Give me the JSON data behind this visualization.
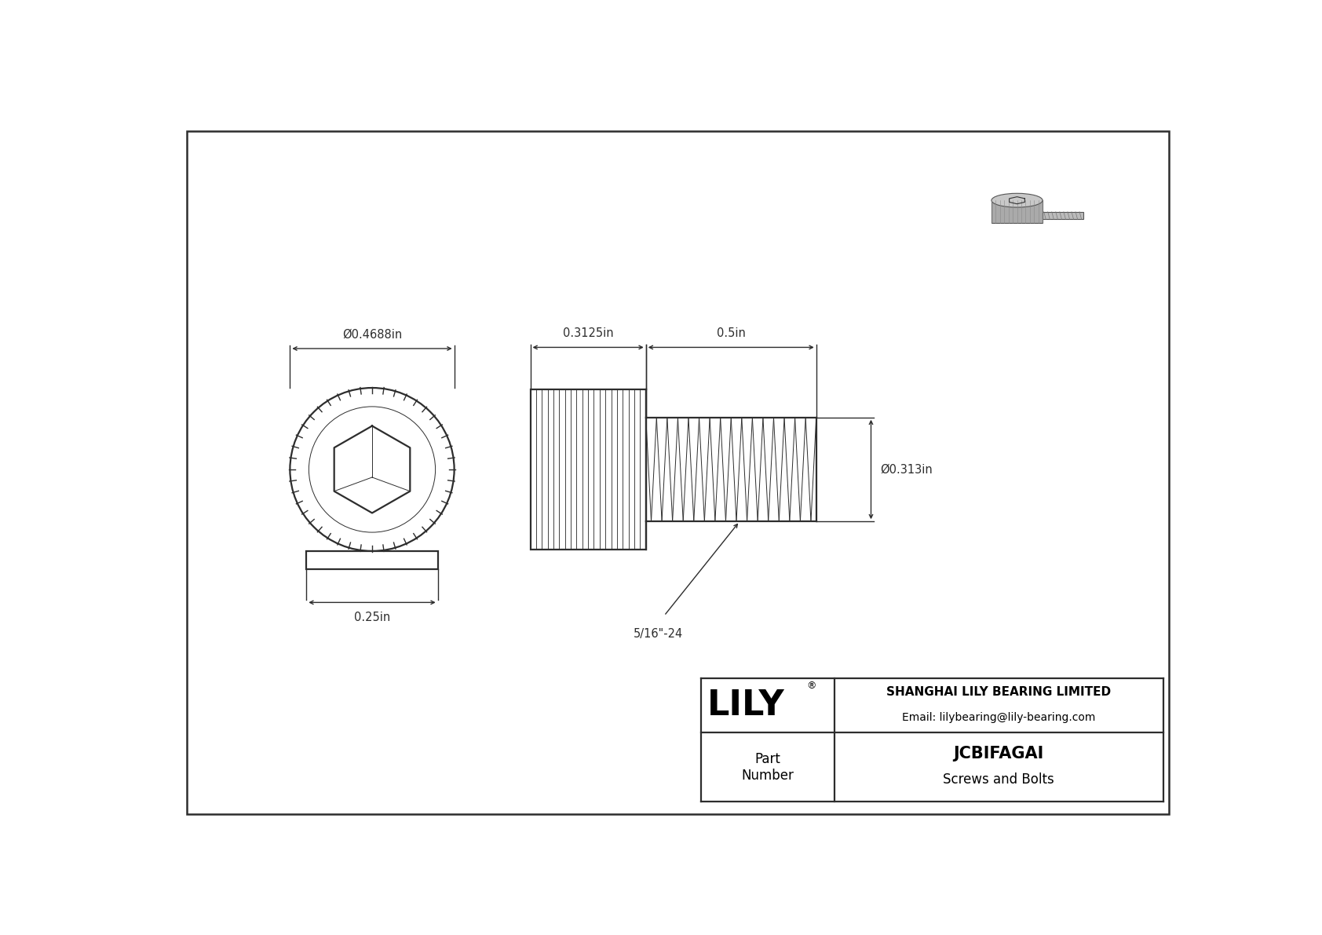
{
  "bg_color": "#ffffff",
  "line_color": "#2d2d2d",
  "title": "JCBIFAGAI",
  "subtitle": "Screws and Bolts",
  "company": "SHANGHAI LILY BEARING LIMITED",
  "email": "Email: lilybearing@lily-bearing.com",
  "part_label": "Part\nNumber",
  "logo_text": "LILY",
  "dim_head_diameter": "Ø0.4688in",
  "dim_inner_diameter": "0.25in",
  "dim_head_length": "0.3125in",
  "dim_shaft_length": "0.5in",
  "dim_shaft_diameter": "Ø0.313in",
  "dim_thread": "5/16\"-24",
  "thread_count": 16,
  "knurl_count": 22
}
